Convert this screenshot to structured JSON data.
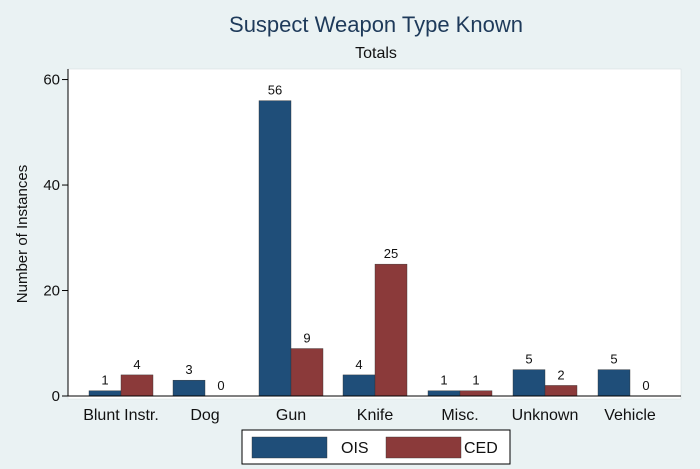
{
  "chart_data": {
    "type": "bar",
    "title": "Suspect Weapon Type Known",
    "subtitle": "Totals",
    "xlabel": "",
    "ylabel": "Number of Instances",
    "categories": [
      "Blunt Instr.",
      "Dog",
      "Gun",
      "Knife",
      "Misc.",
      "Unknown",
      "Vehicle"
    ],
    "series": [
      {
        "name": "OIS",
        "color": "#1f4e79",
        "values": [
          1,
          3,
          56,
          4,
          1,
          5,
          5
        ]
      },
      {
        "name": "CED",
        "color": "#8b3a3a",
        "values": [
          4,
          0,
          9,
          25,
          1,
          2,
          0
        ]
      }
    ],
    "ylim": [
      0,
      62
    ],
    "yticks": [
      0,
      20,
      40,
      60
    ],
    "grid": false,
    "legend_position": "bottom"
  }
}
